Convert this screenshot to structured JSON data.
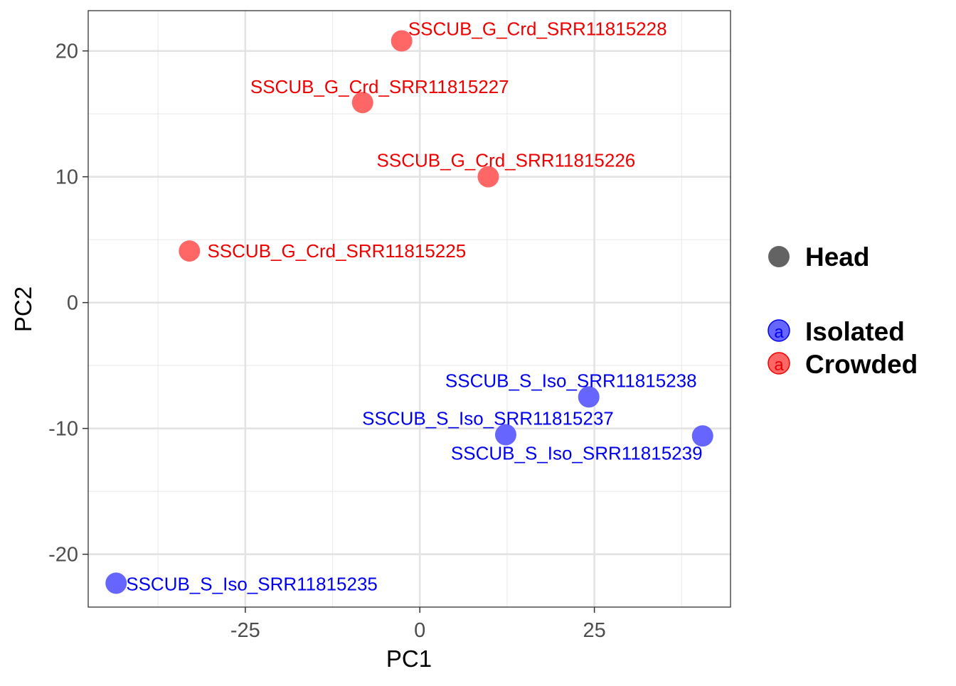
{
  "chart_data": {
    "type": "scatter",
    "xlabel": "PC1",
    "ylabel": "PC2",
    "xlim": [
      -47.5,
      44.5
    ],
    "ylim": [
      -24.2,
      23.2
    ],
    "x_ticks": [
      -25,
      0,
      25
    ],
    "y_ticks": [
      -20,
      -10,
      0,
      10,
      20
    ],
    "x_tick_labels": [
      "-25",
      "0",
      "25"
    ],
    "y_tick_labels": [
      "-20",
      "-10",
      "0",
      "10",
      "20"
    ],
    "grid": true,
    "legend_position": "right",
    "shape_legend": [
      "Head"
    ],
    "series": [
      {
        "name": "Isolated",
        "color": "#6666ff",
        "label_color": "#0000ee",
        "points": [
          {
            "x": -43.5,
            "y": -22.3,
            "label": "SSCUB_S_Iso_SRR11815235"
          },
          {
            "x": 12.3,
            "y": -10.5,
            "label": "SSCUB_S_Iso_SRR11815237"
          },
          {
            "x": 24.2,
            "y": -7.5,
            "label": "SSCUB_S_Iso_SRR11815238"
          },
          {
            "x": 40.5,
            "y": -10.6,
            "label": "SSCUB_S_Iso_SRR11815239"
          }
        ]
      },
      {
        "name": "Crowded",
        "color": "#ff6666",
        "label_color": "#ee0000",
        "points": [
          {
            "x": -33.0,
            "y": 4.1,
            "label": "SSCUB_G_Crd_SRR11815225"
          },
          {
            "x": 9.8,
            "y": 10.0,
            "label": "SSCUB_G_Crd_SRR11815226"
          },
          {
            "x": -8.2,
            "y": 15.9,
            "label": "SSCUB_G_Crd_SRR11815227"
          },
          {
            "x": -2.6,
            "y": 20.8,
            "label": "SSCUB_G_Crd_SRR11815228"
          }
        ]
      }
    ]
  }
}
